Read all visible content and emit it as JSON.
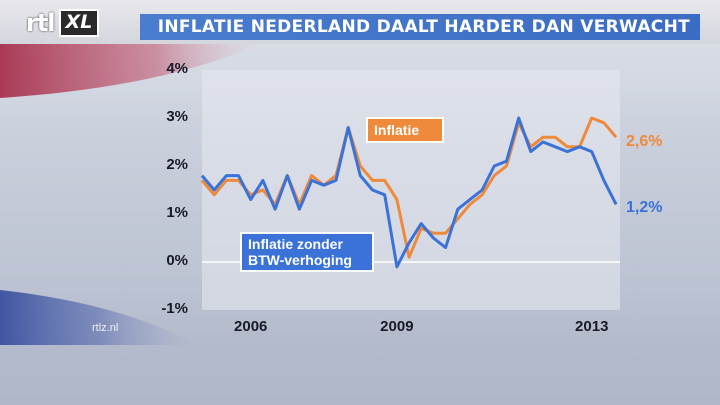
{
  "header": {
    "logo_rtl": "rtl",
    "logo_xl": "XL",
    "title": "INFLATIE NEDERLAND DAALT HARDER DAN VERWACHT"
  },
  "source": "rtlz.nl",
  "colors": {
    "inflatie": "#ee8a3a",
    "zonder_btw": "#3a72d8",
    "title_bar": "#4a7ccf"
  },
  "chart_data": {
    "type": "line",
    "title": "INFLATIE NEDERLAND DAALT HARDER DAN VERWACHT",
    "xlabel": "",
    "ylabel": "",
    "ylim": [
      -1,
      4
    ],
    "y_ticks": [
      "4%",
      "3%",
      "2%",
      "1%",
      "0%",
      "-1%"
    ],
    "y_tick_values": [
      4,
      3,
      2,
      1,
      0,
      -1
    ],
    "x_ticks": [
      "2006",
      "2009",
      "2013"
    ],
    "x_tick_values": [
      2006.0,
      2009.0,
      2013.0
    ],
    "xlim": [
      2005.0,
      2013.58
    ],
    "grid": false,
    "series": [
      {
        "name": "Inflatie",
        "end_label": "2,6%",
        "x": [
          2005.0,
          2005.25,
          2005.5,
          2005.75,
          2006.0,
          2006.25,
          2006.5,
          2006.75,
          2007.0,
          2007.25,
          2007.5,
          2007.75,
          2008.0,
          2008.25,
          2008.5,
          2008.75,
          2009.0,
          2009.25,
          2009.5,
          2009.75,
          2010.0,
          2010.25,
          2010.5,
          2010.75,
          2011.0,
          2011.25,
          2011.5,
          2011.75,
          2012.0,
          2012.25,
          2012.5,
          2012.75,
          2013.0,
          2013.25,
          2013.5
        ],
        "y": [
          1.7,
          1.4,
          1.7,
          1.7,
          1.4,
          1.5,
          1.2,
          1.8,
          1.2,
          1.8,
          1.6,
          1.8,
          2.8,
          2.0,
          1.7,
          1.7,
          1.3,
          0.1,
          0.7,
          0.6,
          0.6,
          0.9,
          1.2,
          1.4,
          1.8,
          2.0,
          2.9,
          2.4,
          2.6,
          2.6,
          2.4,
          2.4,
          3.0,
          2.9,
          2.6
        ]
      },
      {
        "name": "Inflatie zonder BTW-verhoging",
        "end_label": "1,2%",
        "x": [
          2005.0,
          2005.25,
          2005.5,
          2005.75,
          2006.0,
          2006.25,
          2006.5,
          2006.75,
          2007.0,
          2007.25,
          2007.5,
          2007.75,
          2008.0,
          2008.25,
          2008.5,
          2008.75,
          2009.0,
          2009.25,
          2009.5,
          2009.75,
          2010.0,
          2010.25,
          2010.5,
          2010.75,
          2011.0,
          2011.25,
          2011.5,
          2011.75,
          2012.0,
          2012.25,
          2012.5,
          2012.75,
          2013.0,
          2013.25,
          2013.5
        ],
        "y": [
          1.8,
          1.5,
          1.8,
          1.8,
          1.3,
          1.7,
          1.1,
          1.8,
          1.1,
          1.7,
          1.6,
          1.7,
          2.8,
          1.8,
          1.5,
          1.4,
          -0.1,
          0.4,
          0.8,
          0.5,
          0.3,
          1.1,
          1.3,
          1.5,
          2.0,
          2.1,
          3.0,
          2.3,
          2.5,
          2.4,
          2.3,
          2.4,
          2.3,
          1.7,
          1.2
        ]
      }
    ],
    "annotations": [
      "Inflatie",
      "Inflatie zonder BTW-verhoging"
    ]
  }
}
